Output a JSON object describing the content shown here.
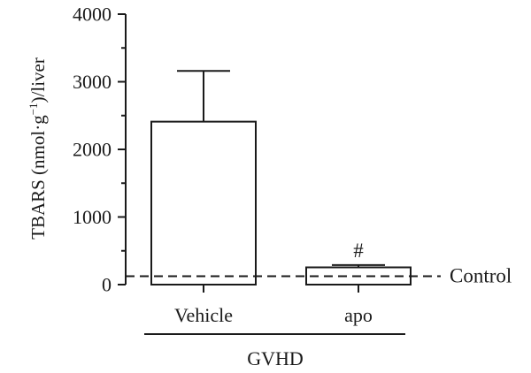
{
  "chart_data": {
    "type": "bar",
    "categories": [
      "Vehicle",
      "apo"
    ],
    "values": [
      2410,
      255
    ],
    "error_upper": [
      3160,
      290
    ],
    "ylabel_parts": [
      "TBARS (nmol·g",
      "−1",
      ")/liver"
    ],
    "ylim": [
      0,
      4000
    ],
    "yticks": [
      "0",
      "1000",
      "2000",
      "3000",
      "4000"
    ],
    "ytick_values": [
      0,
      1000,
      2000,
      3000,
      4000
    ],
    "yminor_values": [
      500,
      1500,
      2500,
      3500
    ],
    "control": {
      "label": "Control",
      "value": 125
    },
    "annotations": [
      {
        "category": "apo",
        "text": "#"
      }
    ],
    "group": {
      "label": "GVHD",
      "categories": [
        "Vehicle",
        "apo"
      ]
    },
    "bar_fill": "#ffffff",
    "bar_stroke": "#1a1a1a",
    "grid": false,
    "legend": "none"
  }
}
